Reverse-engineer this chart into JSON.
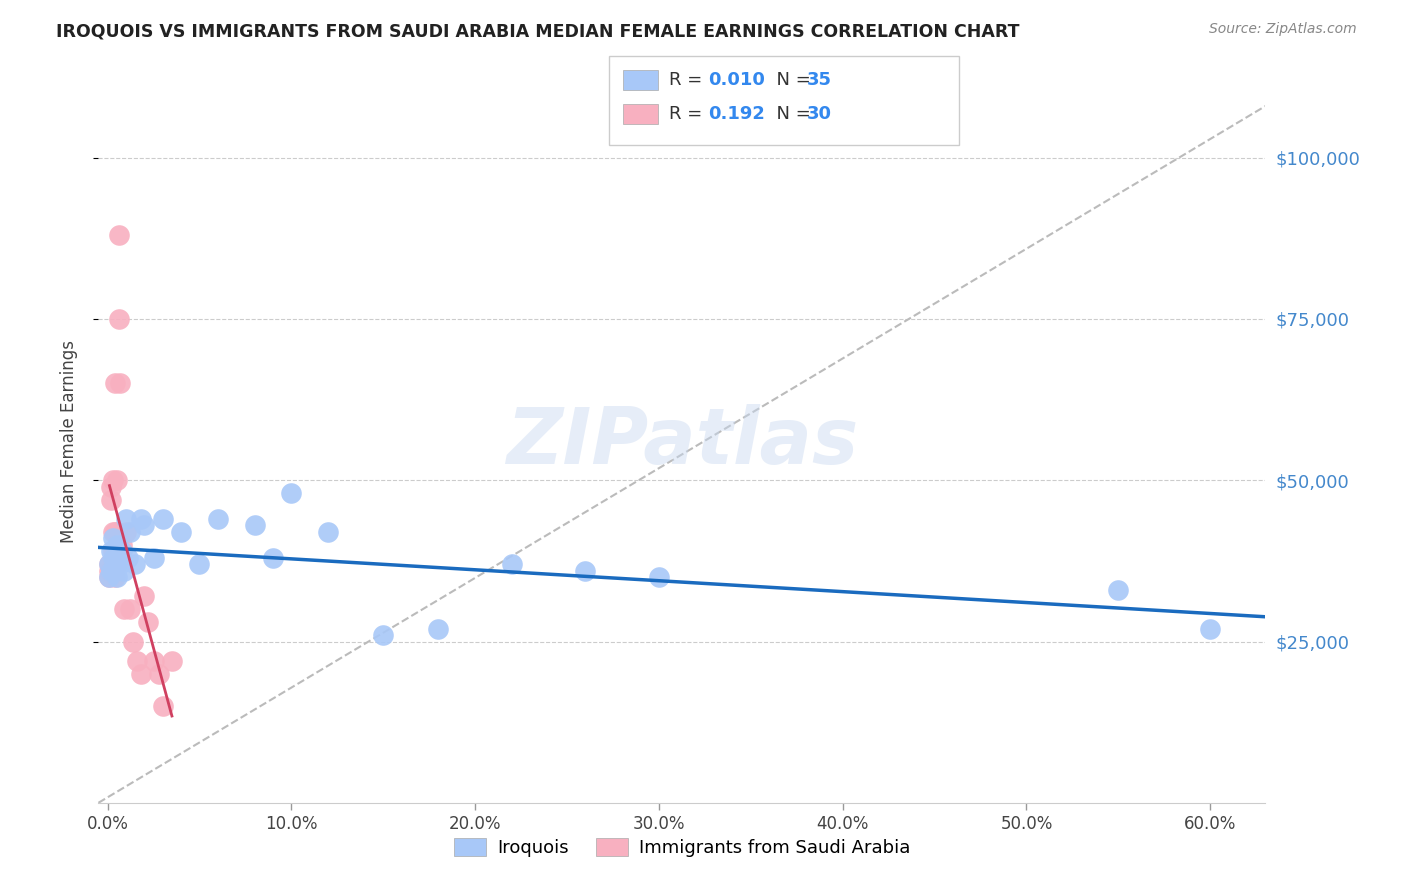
{
  "title": "IROQUOIS VS IMMIGRANTS FROM SAUDI ARABIA MEDIAN FEMALE EARNINGS CORRELATION CHART",
  "source": "Source: ZipAtlas.com",
  "ylabel": "Median Female Earnings",
  "xlabel_ticks": [
    "0.0%",
    "10.0%",
    "20.0%",
    "30.0%",
    "40.0%",
    "50.0%",
    "60.0%"
  ],
  "xlabel_vals": [
    0.0,
    0.1,
    0.2,
    0.3,
    0.4,
    0.5,
    0.6
  ],
  "ytick_labels": [
    "$25,000",
    "$50,000",
    "$75,000",
    "$100,000"
  ],
  "ytick_vals": [
    25000,
    50000,
    75000,
    100000
  ],
  "ylim": [
    0,
    112000
  ],
  "xlim": [
    -0.005,
    0.63
  ],
  "legend_entries": [
    {
      "label": "Iroquois",
      "R": "0.010",
      "N": "35",
      "color": "#a8c8f8"
    },
    {
      "label": "Immigrants from Saudi Arabia",
      "R": "0.192",
      "N": "30",
      "color": "#f8b0c0"
    }
  ],
  "watermark": "ZIPatlas",
  "iroquois_color": "#a8c8f8",
  "saudi_color": "#f8b0c0",
  "iroquois_line_color": "#1a6bbf",
  "saudi_line_color": "#d04060",
  "background_color": "#ffffff",
  "grid_color": "#cccccc",
  "iroquois_x": [
    0.001,
    0.001,
    0.002,
    0.002,
    0.003,
    0.003,
    0.004,
    0.005,
    0.005,
    0.006,
    0.007,
    0.008,
    0.009,
    0.01,
    0.011,
    0.012,
    0.015,
    0.018,
    0.02,
    0.025,
    0.03,
    0.04,
    0.05,
    0.06,
    0.08,
    0.09,
    0.1,
    0.12,
    0.15,
    0.18,
    0.22,
    0.26,
    0.3,
    0.55,
    0.6
  ],
  "iroquois_y": [
    37000,
    35000,
    39000,
    36000,
    41000,
    38000,
    36000,
    40000,
    35000,
    38000,
    37000,
    39000,
    36000,
    44000,
    38000,
    42000,
    37000,
    44000,
    43000,
    38000,
    44000,
    42000,
    37000,
    44000,
    43000,
    38000,
    48000,
    42000,
    26000,
    27000,
    37000,
    36000,
    35000,
    33000,
    27000
  ],
  "saudi_x": [
    0.001,
    0.001,
    0.001,
    0.002,
    0.002,
    0.003,
    0.003,
    0.003,
    0.004,
    0.004,
    0.004,
    0.005,
    0.005,
    0.005,
    0.006,
    0.006,
    0.007,
    0.008,
    0.009,
    0.01,
    0.012,
    0.014,
    0.016,
    0.018,
    0.02,
    0.022,
    0.025,
    0.028,
    0.03,
    0.035
  ],
  "saudi_y": [
    37000,
    36000,
    35000,
    49000,
    47000,
    50000,
    42000,
    39000,
    65000,
    42000,
    35000,
    50000,
    42000,
    37000,
    88000,
    75000,
    65000,
    40000,
    30000,
    42000,
    30000,
    25000,
    22000,
    20000,
    32000,
    28000,
    22000,
    20000,
    15000,
    22000
  ]
}
